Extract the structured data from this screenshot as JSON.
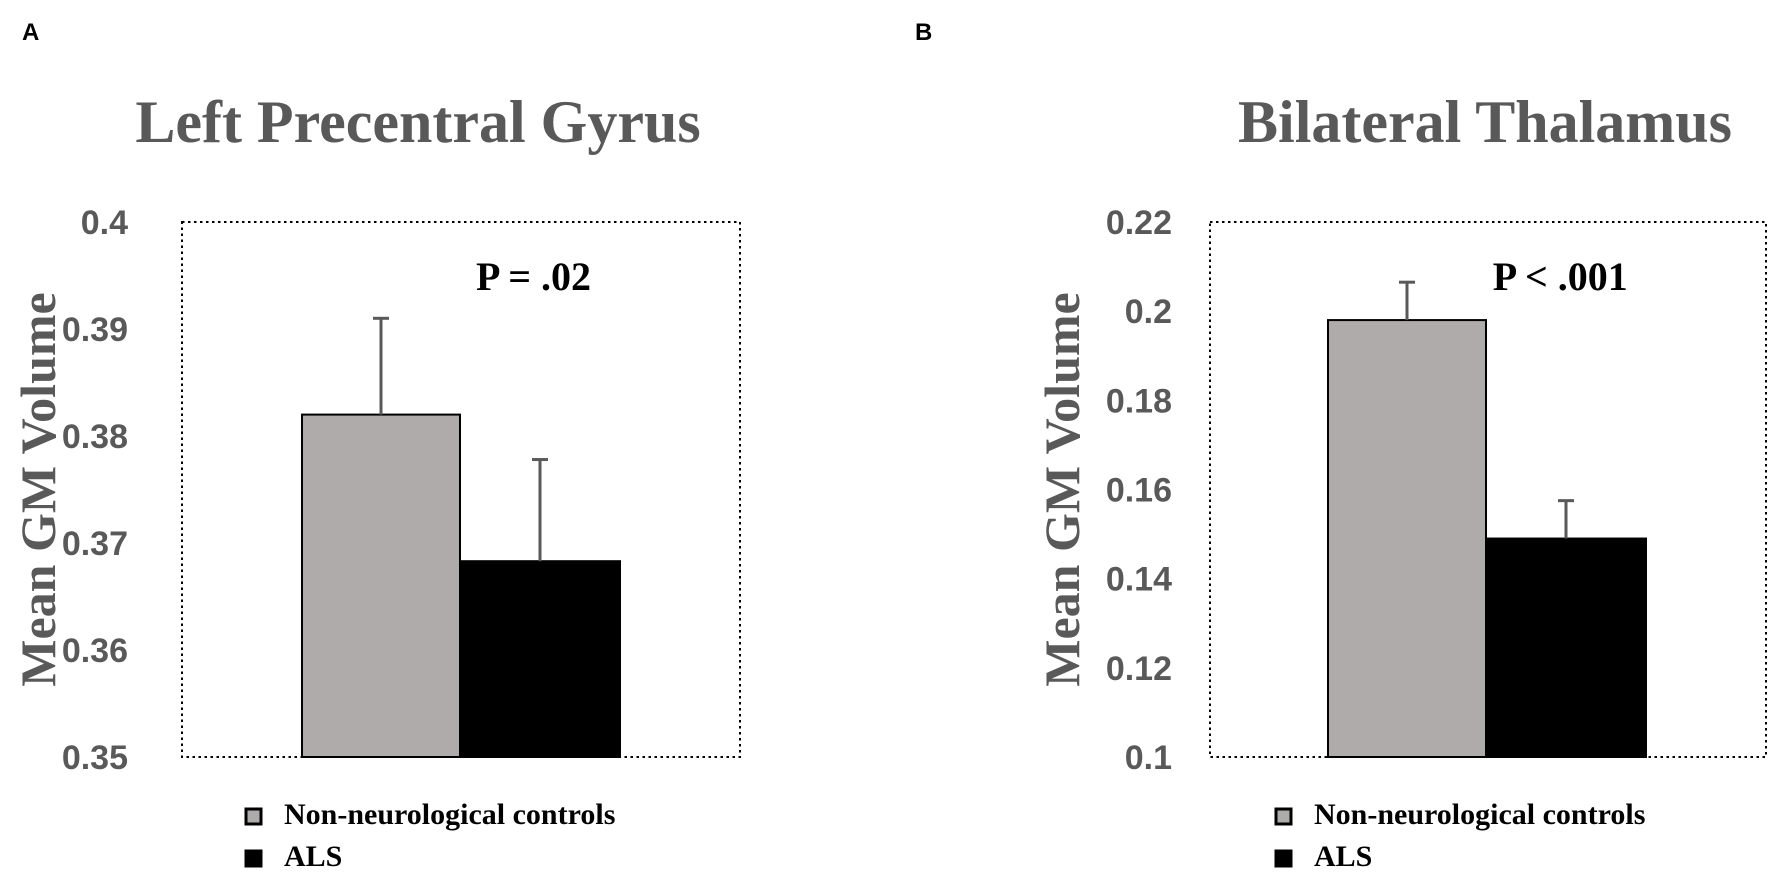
{
  "chart_data": [
    {
      "panel": "A",
      "type": "bar",
      "title": "Left Precentral Gyrus",
      "ylabel": "Mean GM Volume",
      "ylim": [
        0.35,
        0.4
      ],
      "yticks": [
        "0.35",
        "0.36",
        "0.37",
        "0.38",
        "0.39",
        "0.4"
      ],
      "annotation": "P = .02",
      "series": [
        {
          "name": "Non-neurological controls",
          "value": 0.382,
          "error": 0.009,
          "color": "#afabab"
        },
        {
          "name": "ALS",
          "value": 0.3683,
          "error": 0.0095,
          "color": "#000000"
        }
      ],
      "legend_position": "bottom-left",
      "grid": false
    },
    {
      "panel": "B",
      "type": "bar",
      "title": "Bilateral Thalamus",
      "ylabel": "Mean GM Volume",
      "ylim": [
        0.1,
        0.22
      ],
      "yticks": [
        "0.1",
        "0.12",
        "0.14",
        "0.16",
        "0.18",
        "0.2",
        "0.22"
      ],
      "annotation": "P < .001",
      "series": [
        {
          "name": "Non-neurological controls",
          "value": 0.198,
          "error": 0.0085,
          "color": "#afabab"
        },
        {
          "name": "ALS",
          "value": 0.149,
          "error": 0.0085,
          "color": "#000000"
        }
      ],
      "legend_position": "bottom-left",
      "grid": false
    }
  ]
}
